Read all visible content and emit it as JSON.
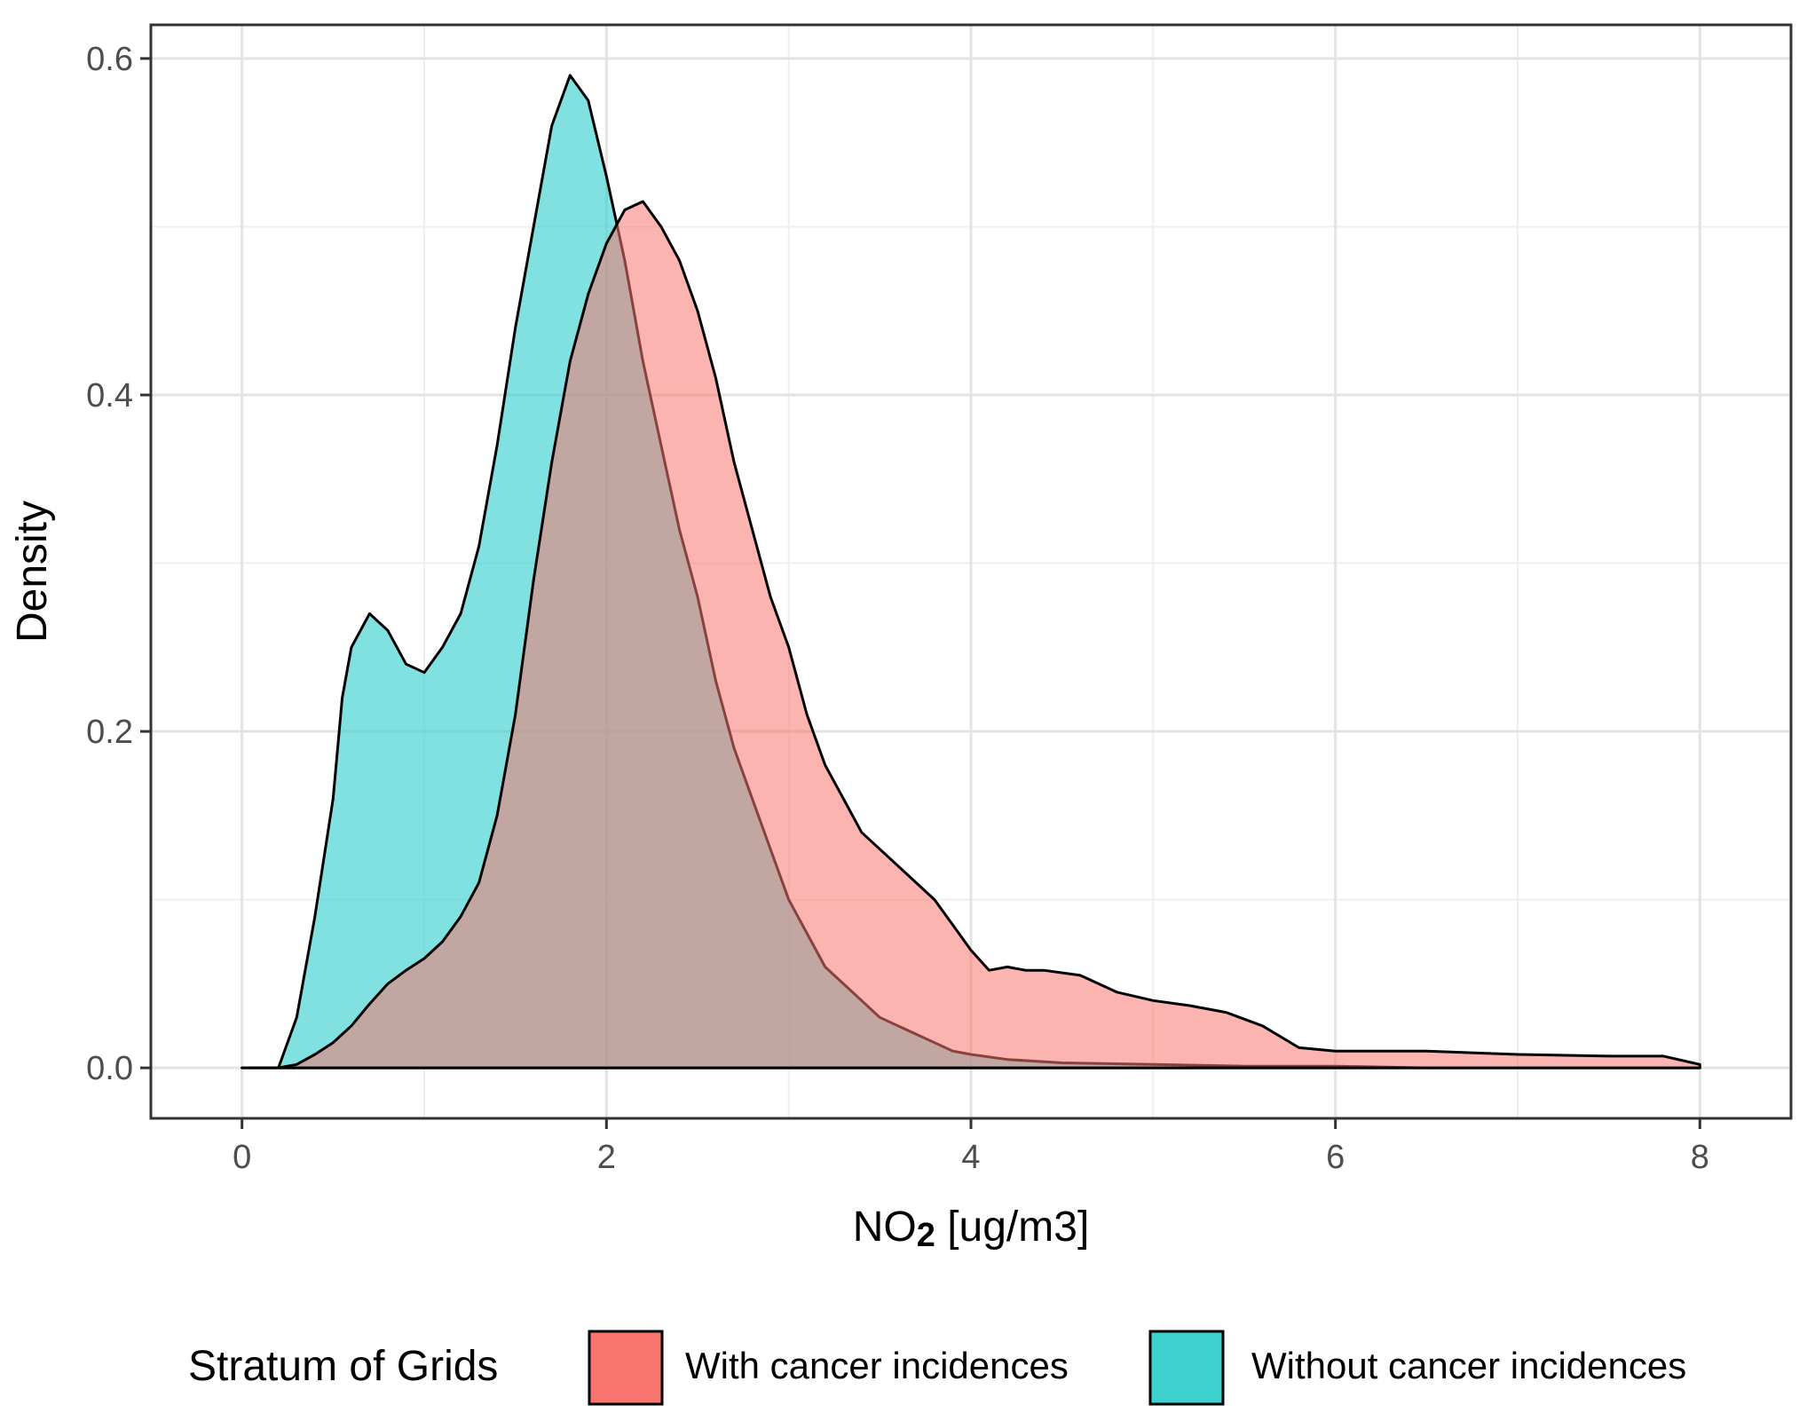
{
  "chart_data": {
    "type": "area",
    "title": "",
    "xlabel": "NO",
    "xlabel_subscript": "2",
    "xlabel_suffix": " [ug/m3]",
    "ylabel": "Density",
    "xlim": [
      -0.5,
      8.5
    ],
    "ylim": [
      -0.03,
      0.62
    ],
    "x_ticks": [
      0,
      2,
      4,
      6,
      8
    ],
    "x_tick_labels": [
      "0",
      "2",
      "4",
      "6",
      "8"
    ],
    "y_ticks": [
      0.0,
      0.2,
      0.4,
      0.6
    ],
    "y_tick_labels": [
      "0.0",
      "0.2",
      "0.4",
      "0.6"
    ],
    "grid": true,
    "legend": {
      "title": "Stratum of Grids",
      "position": "bottom"
    },
    "series": [
      {
        "name": "Without cancer incidences",
        "color": "#3ecfcf",
        "opacity": 0.65,
        "x": [
          0.0,
          0.2,
          0.3,
          0.4,
          0.5,
          0.55,
          0.6,
          0.7,
          0.8,
          0.9,
          1.0,
          1.1,
          1.2,
          1.3,
          1.4,
          1.5,
          1.6,
          1.7,
          1.8,
          1.9,
          2.0,
          2.1,
          2.2,
          2.3,
          2.4,
          2.5,
          2.6,
          2.7,
          2.8,
          2.9,
          3.0,
          3.1,
          3.2,
          3.3,
          3.4,
          3.5,
          3.6,
          3.7,
          3.8,
          3.9,
          4.0,
          4.2,
          4.5,
          5.0,
          5.5,
          6.0,
          6.5,
          7.0,
          7.5,
          8.0
        ],
        "y": [
          0.0,
          0.0,
          0.03,
          0.09,
          0.16,
          0.22,
          0.25,
          0.27,
          0.26,
          0.24,
          0.235,
          0.25,
          0.27,
          0.31,
          0.37,
          0.44,
          0.5,
          0.56,
          0.59,
          0.575,
          0.53,
          0.48,
          0.42,
          0.37,
          0.32,
          0.28,
          0.23,
          0.19,
          0.16,
          0.13,
          0.1,
          0.08,
          0.06,
          0.05,
          0.04,
          0.03,
          0.025,
          0.02,
          0.015,
          0.01,
          0.008,
          0.005,
          0.003,
          0.002,
          0.001,
          0.001,
          0.0,
          0.0,
          0.0,
          0.0
        ]
      },
      {
        "name": "With cancer incidences",
        "color": "#f8766d",
        "opacity": 0.55,
        "x": [
          0.0,
          0.2,
          0.3,
          0.4,
          0.5,
          0.6,
          0.7,
          0.8,
          0.9,
          1.0,
          1.1,
          1.2,
          1.3,
          1.4,
          1.5,
          1.6,
          1.7,
          1.8,
          1.9,
          2.0,
          2.1,
          2.2,
          2.3,
          2.4,
          2.5,
          2.6,
          2.7,
          2.8,
          2.9,
          3.0,
          3.1,
          3.2,
          3.3,
          3.4,
          3.5,
          3.6,
          3.7,
          3.8,
          3.9,
          4.0,
          4.1,
          4.2,
          4.3,
          4.4,
          4.6,
          4.8,
          5.0,
          5.2,
          5.4,
          5.6,
          5.8,
          6.0,
          6.5,
          7.0,
          7.5,
          7.8,
          8.0
        ],
        "y": [
          0.0,
          0.0,
          0.002,
          0.008,
          0.015,
          0.025,
          0.038,
          0.05,
          0.058,
          0.065,
          0.075,
          0.09,
          0.11,
          0.15,
          0.21,
          0.29,
          0.36,
          0.42,
          0.46,
          0.49,
          0.51,
          0.515,
          0.5,
          0.48,
          0.45,
          0.41,
          0.36,
          0.32,
          0.28,
          0.25,
          0.21,
          0.18,
          0.16,
          0.14,
          0.13,
          0.12,
          0.11,
          0.1,
          0.085,
          0.07,
          0.058,
          0.06,
          0.058,
          0.058,
          0.055,
          0.045,
          0.04,
          0.037,
          0.033,
          0.025,
          0.012,
          0.01,
          0.01,
          0.008,
          0.007,
          0.007,
          0.002
        ]
      }
    ]
  }
}
